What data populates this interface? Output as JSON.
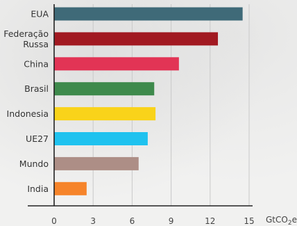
{
  "chart_data": {
    "type": "bar",
    "orientation": "horizontal",
    "categories": [
      "EUA",
      "Federação Russa",
      "China",
      "Brasil",
      "Indonesia",
      "UE27",
      "Mundo",
      "India"
    ],
    "category_lines": [
      [
        "EUA"
      ],
      [
        "Federação",
        "Russa"
      ],
      [
        "China"
      ],
      [
        "Brasil"
      ],
      [
        "Indonesia"
      ],
      [
        "UE27"
      ],
      [
        "Mundo"
      ],
      [
        "India"
      ]
    ],
    "values": [
      14.5,
      12.6,
      9.6,
      7.7,
      7.8,
      7.2,
      6.5,
      2.5
    ],
    "colors": [
      "#3f6a78",
      "#a11921",
      "#e23455",
      "#3e8a4c",
      "#f9d31a",
      "#1fc2ef",
      "#ad8e86",
      "#f6842a"
    ],
    "xlim": [
      0,
      15
    ],
    "xticks": [
      "0",
      "3",
      "6",
      "9",
      "12",
      "15"
    ],
    "unit_prefix": "GtCO",
    "unit_sub": "2",
    "unit_suffix": "e",
    "grid": true,
    "grid_color": "#c9c9c9",
    "axis_color": "#222222"
  }
}
